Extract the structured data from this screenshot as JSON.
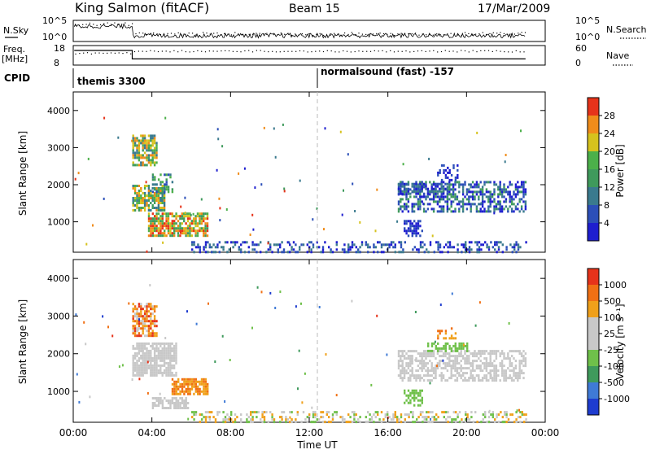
{
  "header": {
    "station": "King Salmon (fitACF)",
    "beam": "Beam 15",
    "date": "17/Mar/2009"
  },
  "nsky_panel": {
    "left_label": "N.Sky",
    "right_label": "N.Search",
    "ticks": [
      "10^5",
      "10^0"
    ]
  },
  "freq_panel": {
    "left_label_1": "Freq.",
    "left_label_2": "[MHz]",
    "right_label": "Nave",
    "left_ticks": [
      "18",
      "8"
    ],
    "right_ticks": [
      "60",
      "0"
    ]
  },
  "cpid_panel": {
    "label": "CPID",
    "segments": [
      {
        "start_hour": 0,
        "text": "themis 3300"
      },
      {
        "start_hour": 12,
        "text": "normalsound (fast) -157"
      }
    ]
  },
  "colors": {
    "power_scale": [
      "#1e1ecf",
      "#2c4fb8",
      "#3a7a8e",
      "#3f9a5c",
      "#4cb04a",
      "#d6c21d",
      "#f08c1a",
      "#e6331a"
    ],
    "velocity_scale": [
      "#1e3ccf",
      "#3f7ad6",
      "#3f9a5c",
      "#6fc04a",
      "#c8c8c8",
      "#c8c8c8",
      "#f0a01a",
      "#f07014",
      "#e6331a"
    ],
    "gray": "#c8c8c8",
    "divider": "#bbbbbb"
  },
  "power_colorbar": {
    "title": "Power [dB]",
    "ticks": [
      "28",
      "24",
      "20",
      "16",
      "12",
      "8",
      "4"
    ]
  },
  "velocity_colorbar": {
    "title": "Velocity [m s⁻¹]",
    "ticks": [
      "1000",
      "500",
      "100",
      "25",
      "-25",
      "-100",
      "-500",
      "-1000"
    ]
  },
  "chart_data": {
    "type": "heatmap",
    "x_axis": {
      "label": "Time UT",
      "ticks": [
        "00:00",
        "04:00",
        "08:00",
        "12:00",
        "16:00",
        "20:00",
        "00:00"
      ],
      "range_hours": [
        0,
        24
      ],
      "data_end_hour": 23
    },
    "y_axis": {
      "label": "Slant Range [km]",
      "ticks": [
        "4000",
        "3000",
        "2000",
        "1000"
      ],
      "range": [
        180,
        4500
      ]
    },
    "panels": [
      {
        "name": "power",
        "blobs": [
          {
            "t0": 3.0,
            "t1": 4.2,
            "r0": 2500,
            "r1": 3350,
            "density": 0.75,
            "levels": [
              2,
              6
            ]
          },
          {
            "t0": 3.0,
            "t1": 4.6,
            "r0": 1300,
            "r1": 2000,
            "density": 0.75,
            "levels": [
              2,
              6
            ]
          },
          {
            "t0": 4.0,
            "t1": 5.0,
            "r0": 1800,
            "r1": 2300,
            "density": 0.5,
            "levels": [
              1,
              4
            ]
          },
          {
            "t0": 3.8,
            "t1": 6.8,
            "r0": 600,
            "r1": 1250,
            "density": 0.75,
            "levels": [
              3,
              7
            ]
          },
          {
            "t0": 16.5,
            "t1": 23.0,
            "r0": 1300,
            "r1": 2100,
            "density": 0.55,
            "levels": [
              0,
              3
            ]
          },
          {
            "t0": 16.5,
            "t1": 19.0,
            "r0": 1750,
            "r1": 2050,
            "density": 0.6,
            "levels": [
              0,
              2
            ]
          },
          {
            "t0": 16.8,
            "t1": 17.7,
            "r0": 650,
            "r1": 1050,
            "density": 0.6,
            "levels": [
              0,
              1
            ]
          },
          {
            "t0": 18.5,
            "t1": 19.5,
            "r0": 2100,
            "r1": 2550,
            "density": 0.35,
            "levels": [
              0,
              1
            ]
          },
          {
            "t0": 6.0,
            "t1": 23.0,
            "r0": 200,
            "r1": 480,
            "density": 0.35,
            "levels": [
              0,
              2
            ]
          }
        ]
      },
      {
        "name": "velocity",
        "blobs": [
          {
            "t0": 3.0,
            "t1": 4.2,
            "r0": 2500,
            "r1": 3350,
            "density": 0.75,
            "levels": [
              5,
              8
            ]
          },
          {
            "t0": 3.0,
            "t1": 5.2,
            "r0": 1400,
            "r1": 2300,
            "density": 0.8,
            "levels": [
              4,
              5
            ]
          },
          {
            "t0": 5.0,
            "t1": 6.8,
            "r0": 950,
            "r1": 1350,
            "density": 0.75,
            "levels": [
              6,
              7
            ]
          },
          {
            "t0": 4.0,
            "t1": 5.8,
            "r0": 550,
            "r1": 850,
            "density": 0.7,
            "levels": [
              4,
              4
            ]
          },
          {
            "t0": 16.5,
            "t1": 23.0,
            "r0": 1300,
            "r1": 2100,
            "density": 0.55,
            "levels": [
              4,
              5
            ]
          },
          {
            "t0": 18.0,
            "t1": 20.0,
            "r0": 2050,
            "r1": 2300,
            "density": 0.55,
            "levels": [
              3,
              3
            ]
          },
          {
            "t0": 16.8,
            "t1": 17.7,
            "r0": 650,
            "r1": 1050,
            "density": 0.6,
            "levels": [
              3,
              3
            ]
          },
          {
            "t0": 18.5,
            "t1": 19.5,
            "r0": 2400,
            "r1": 2700,
            "density": 0.45,
            "levels": [
              6,
              7
            ]
          },
          {
            "t0": 6.0,
            "t1": 23.0,
            "r0": 200,
            "r1": 480,
            "density": 0.35,
            "levels": [
              3,
              6
            ]
          }
        ]
      }
    ],
    "cutoff_hour": 23.0,
    "nsky": {
      "high_until_hour": 3.0,
      "high_frac": 0.72,
      "low_frac": 0.28
    },
    "freq": {
      "level_before_hour": 3.0,
      "before_frac": 0.75,
      "after_frac": 0.65
    },
    "grid": false
  }
}
